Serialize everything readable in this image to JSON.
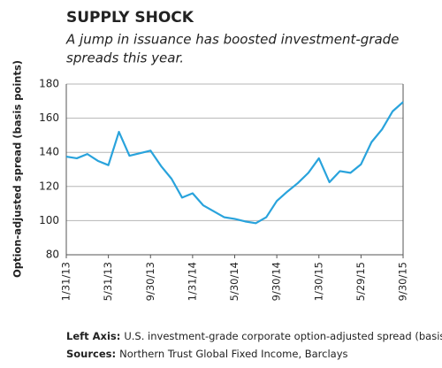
{
  "chart_data": {
    "type": "line",
    "title": "SUPPLY SHOCK",
    "subtitle": [
      "A jump in issuance has boosted investment-grade",
      "spreads this year."
    ],
    "y_label": "Option-adjusted spread (basis points)",
    "categories": [
      "1/31/13",
      null,
      null,
      null,
      "5/31/13",
      null,
      null,
      null,
      "9/30/13",
      null,
      null,
      null,
      "1/31/14",
      null,
      null,
      null,
      "5/30/14",
      null,
      null,
      null,
      "9/30/14",
      null,
      null,
      null,
      "1/30/15",
      null,
      null,
      null,
      "5/29/15",
      null,
      null,
      null,
      "9/30/15"
    ],
    "series": [
      {
        "name": "Option-adjusted spread",
        "color": "#29a3dc",
        "values": [
          137.5,
          136.5,
          139,
          135,
          132.5,
          152,
          138,
          139.5,
          141,
          132,
          124.5,
          113.5,
          116,
          109,
          105.5,
          102,
          101,
          99.5,
          98.5,
          102,
          111.5,
          117,
          122,
          128,
          136.5,
          122.5,
          129,
          128,
          133,
          146,
          153.5,
          164,
          169.5
        ]
      }
    ],
    "ylim": [
      80,
      180
    ],
    "yticks": [
      80,
      100,
      120,
      140,
      160,
      180
    ],
    "grid": true,
    "notes": [
      {
        "label": "Left Axis:",
        "text": "U.S. investment-grade corporate option-adjusted spread (basis points)"
      },
      {
        "label": "Sources:",
        "text": "Northern Trust Global Fixed Income, Barclays"
      }
    ]
  }
}
